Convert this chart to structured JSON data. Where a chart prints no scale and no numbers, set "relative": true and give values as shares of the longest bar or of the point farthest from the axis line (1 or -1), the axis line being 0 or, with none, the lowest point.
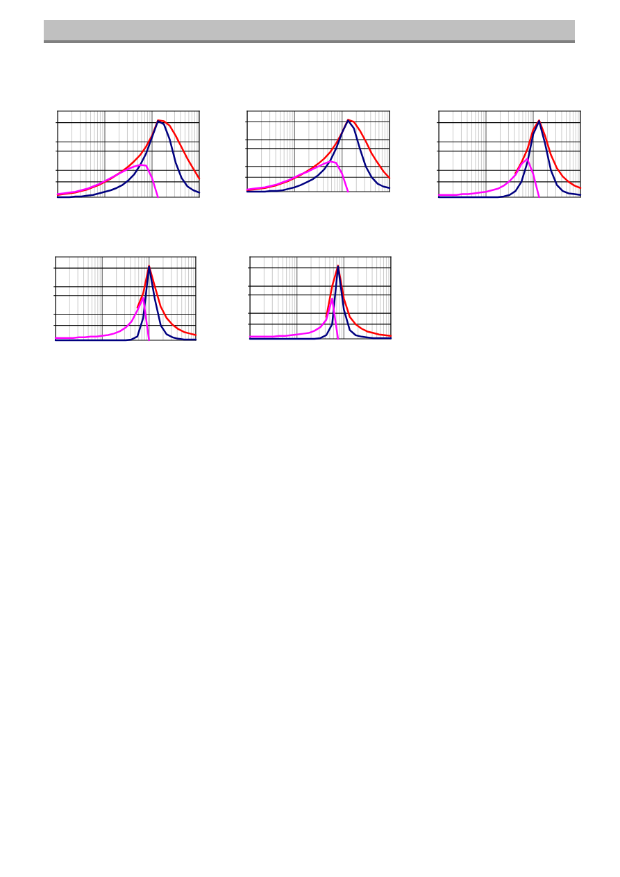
{
  "chart_data": [
    {
      "type": "line",
      "relative": true,
      "grid": true,
      "categories": [
        null,
        null,
        null,
        null,
        null,
        null,
        null,
        null,
        null,
        null,
        null,
        null,
        null,
        null,
        null,
        null,
        null,
        null,
        null,
        null,
        null,
        null,
        null,
        null,
        null
      ],
      "series": [
        {
          "color": "#ff0000",
          "values": [
            0.03,
            0.04,
            0.05,
            0.06,
            0.08,
            0.1,
            0.13,
            0.16,
            0.2,
            0.24,
            0.29,
            0.34,
            0.4,
            0.47,
            0.55,
            0.66,
            0.8,
            1.0,
            0.99,
            0.93,
            0.8,
            0.65,
            0.5,
            0.37,
            0.24
          ]
        },
        {
          "color": "#000080",
          "values": [
            0,
            0,
            0,
            0.01,
            0.01,
            0.02,
            0.03,
            0.05,
            0.07,
            0.09,
            0.12,
            0.16,
            0.22,
            0.3,
            0.42,
            0.57,
            0.78,
            0.99,
            0.95,
            0.75,
            0.45,
            0.25,
            0.14,
            0.09,
            0.06
          ]
        },
        {
          "color": "#ff00ff",
          "values": [
            0.04,
            0.05,
            0.06,
            0.07,
            0.09,
            0.11,
            0.14,
            0.17,
            0.21,
            0.25,
            0.29,
            0.33,
            0.37,
            0.4,
            0.42,
            0.41,
            0.25,
            0,
            null,
            null,
            null,
            null,
            null,
            null,
            null
          ]
        }
      ]
    },
    {
      "type": "line",
      "relative": true,
      "grid": true,
      "categories": [
        null,
        null,
        null,
        null,
        null,
        null,
        null,
        null,
        null,
        null,
        null,
        null,
        null,
        null,
        null,
        null,
        null,
        null,
        null,
        null,
        null,
        null,
        null,
        null,
        null
      ],
      "series": [
        {
          "color": "#ff0000",
          "values": [
            0.02,
            0.03,
            0.04,
            0.05,
            0.07,
            0.09,
            0.12,
            0.15,
            0.19,
            0.23,
            0.28,
            0.33,
            0.39,
            0.46,
            0.55,
            0.67,
            0.82,
            1.0,
            0.97,
            0.85,
            0.7,
            0.53,
            0.4,
            0.28,
            0.19
          ]
        },
        {
          "color": "#000080",
          "values": [
            0,
            0,
            0,
            0,
            0.01,
            0.01,
            0.02,
            0.04,
            0.06,
            0.09,
            0.13,
            0.17,
            0.23,
            0.31,
            0.43,
            0.6,
            0.82,
            0.99,
            0.88,
            0.6,
            0.35,
            0.2,
            0.11,
            0.07,
            0.05
          ]
        },
        {
          "color": "#ff00ff",
          "values": [
            0.03,
            0.04,
            0.05,
            0.06,
            0.08,
            0.1,
            0.13,
            0.16,
            0.2,
            0.24,
            0.27,
            0.31,
            0.35,
            0.39,
            0.42,
            0.4,
            0.25,
            0,
            null,
            null,
            null,
            null,
            null,
            null,
            null
          ]
        }
      ]
    },
    {
      "type": "line",
      "relative": true,
      "grid": true,
      "categories": [
        null,
        null,
        null,
        null,
        null,
        null,
        null,
        null,
        null,
        null,
        null,
        null,
        null,
        null,
        null,
        null,
        null,
        null,
        null,
        null,
        null,
        null,
        null,
        null,
        null
      ],
      "series": [
        {
          "color": "#ff0000",
          "values": [
            null,
            null,
            null,
            null,
            null,
            null,
            null,
            null,
            null,
            null,
            null,
            null,
            null,
            0.31,
            0.45,
            0.62,
            0.88,
            1.0,
            0.8,
            0.55,
            0.38,
            0.27,
            0.2,
            0.15,
            0.12
          ]
        },
        {
          "color": "#000080",
          "values": [
            0,
            0,
            0,
            0,
            0,
            0,
            0,
            0,
            0,
            0,
            0,
            0.01,
            0.03,
            0.08,
            0.2,
            0.45,
            0.82,
            0.99,
            0.7,
            0.35,
            0.16,
            0.08,
            0.05,
            0.04,
            0.03
          ]
        },
        {
          "color": "#ff00ff",
          "values": [
            0.03,
            0.03,
            0.03,
            0.03,
            0.04,
            0.04,
            0.05,
            0.06,
            0.07,
            0.09,
            0.11,
            0.15,
            0.21,
            0.29,
            0.43,
            0.5,
            0.3,
            0,
            null,
            null,
            null,
            null,
            null,
            null,
            null
          ]
        }
      ]
    },
    {
      "type": "line",
      "relative": true,
      "grid": true,
      "categories": [
        null,
        null,
        null,
        null,
        null,
        null,
        null,
        null,
        null,
        null,
        null,
        null,
        null,
        null,
        null,
        null,
        null,
        null,
        null,
        null,
        null,
        null,
        null,
        null,
        null
      ],
      "series": [
        {
          "color": "#ff0000",
          "values": [
            null,
            null,
            null,
            null,
            null,
            null,
            null,
            null,
            null,
            null,
            null,
            null,
            null,
            null,
            0.44,
            0.63,
            1.0,
            0.72,
            0.45,
            0.3,
            0.21,
            0.15,
            0.11,
            0.09,
            0.07
          ]
        },
        {
          "color": "#000080",
          "values": [
            0,
            0,
            0,
            0,
            0,
            0,
            0,
            0,
            0,
            0,
            0,
            0,
            0,
            0.01,
            0.05,
            0.3,
            0.99,
            0.55,
            0.2,
            0.08,
            0.04,
            0.02,
            0.01,
            0.01,
            0.01
          ]
        },
        {
          "color": "#ff00ff",
          "values": [
            0.03,
            0.03,
            0.03,
            0.03,
            0.04,
            0.04,
            0.05,
            0.05,
            0.06,
            0.07,
            0.09,
            0.12,
            0.17,
            0.25,
            0.4,
            0.57,
            0,
            null,
            null,
            null,
            null,
            null,
            null,
            null,
            null
          ]
        }
      ]
    },
    {
      "type": "line",
      "relative": true,
      "grid": true,
      "categories": [
        null,
        null,
        null,
        null,
        null,
        null,
        null,
        null,
        null,
        null,
        null,
        null,
        null,
        null,
        null,
        null,
        null,
        null,
        null,
        null,
        null,
        null,
        null,
        null,
        null
      ],
      "series": [
        {
          "color": "#ff0000",
          "values": [
            null,
            null,
            null,
            null,
            null,
            null,
            null,
            null,
            null,
            null,
            null,
            null,
            null,
            0.3,
            0.72,
            1.0,
            0.55,
            0.3,
            0.2,
            0.14,
            0.1,
            0.08,
            0.06,
            0.05,
            0.04
          ]
        },
        {
          "color": "#000080",
          "values": [
            0,
            0,
            0,
            0,
            0,
            0,
            0,
            0,
            0,
            0,
            0,
            0,
            0.01,
            0.05,
            0.2,
            0.99,
            0.4,
            0.12,
            0.05,
            0.03,
            0.02,
            0.01,
            0.01,
            0.01,
            0.01
          ]
        },
        {
          "color": "#ff00ff",
          "values": [
            0.03,
            0.03,
            0.03,
            0.03,
            0.03,
            0.04,
            0.04,
            0.05,
            0.06,
            0.07,
            0.08,
            0.11,
            0.16,
            0.26,
            0.55,
            0,
            null,
            null,
            null,
            null,
            null,
            null,
            null,
            null,
            null
          ]
        }
      ]
    }
  ]
}
